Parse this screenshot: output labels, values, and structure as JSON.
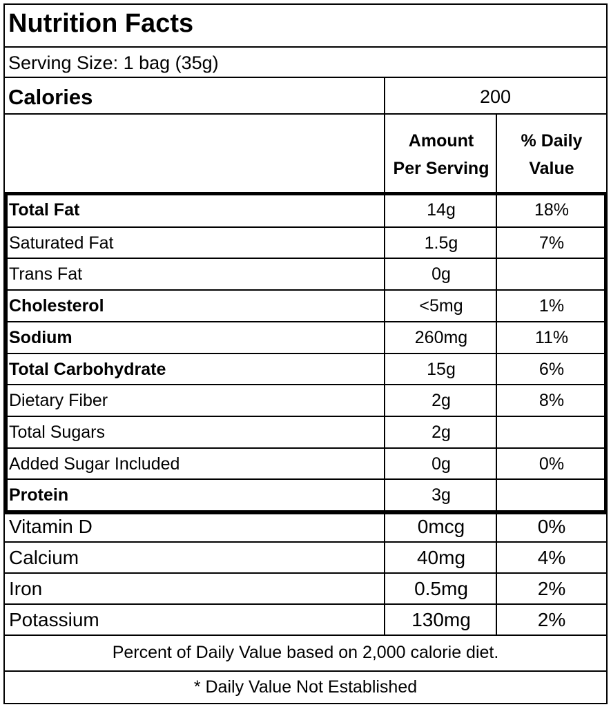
{
  "title": "Nutrition Facts",
  "serving_size": "Serving Size: 1 bag (35g)",
  "calories": {
    "label": "Calories",
    "value": "200"
  },
  "header": {
    "amount_line1": "Amount",
    "amount_line2": "Per Serving",
    "dv_line1": "% Daily",
    "dv_line2": "Value"
  },
  "nutrients": [
    {
      "name": "Total Fat",
      "amount": "14g",
      "dv": "18%",
      "bold": true
    },
    {
      "name": "Saturated Fat",
      "amount": "1.5g",
      "dv": "7%",
      "bold": false
    },
    {
      "name": "Trans Fat",
      "amount": "0g",
      "dv": "",
      "bold": false
    },
    {
      "name": "Cholesterol",
      "amount": "<5mg",
      "dv": "1%",
      "bold": true
    },
    {
      "name": "Sodium",
      "amount": "260mg",
      "dv": "11%",
      "bold": true
    },
    {
      "name": "Total Carbohydrate",
      "amount": "15g",
      "dv": "6%",
      "bold": true
    },
    {
      "name": "Dietary Fiber",
      "amount": "2g",
      "dv": "8%",
      "bold": false
    },
    {
      "name": "Total Sugars",
      "amount": "2g",
      "dv": "",
      "bold": false
    },
    {
      "name": "Added Sugar Included",
      "amount": "0g",
      "dv": "0%",
      "bold": false
    },
    {
      "name": "Protein",
      "amount": "3g",
      "dv": "",
      "bold": true
    }
  ],
  "vitamins": [
    {
      "name": "Vitamin D",
      "amount": "0mcg",
      "dv": "0%"
    },
    {
      "name": "Calcium",
      "amount": "40mg",
      "dv": "4%"
    },
    {
      "name": "Iron",
      "amount": "0.5mg",
      "dv": "2%"
    },
    {
      "name": "Potassium",
      "amount": "130mg",
      "dv": "2%"
    }
  ],
  "footnote_dv": "Percent of Daily Value based on 2,000 calorie diet.",
  "footnote_star": "* Daily Value Not Established"
}
